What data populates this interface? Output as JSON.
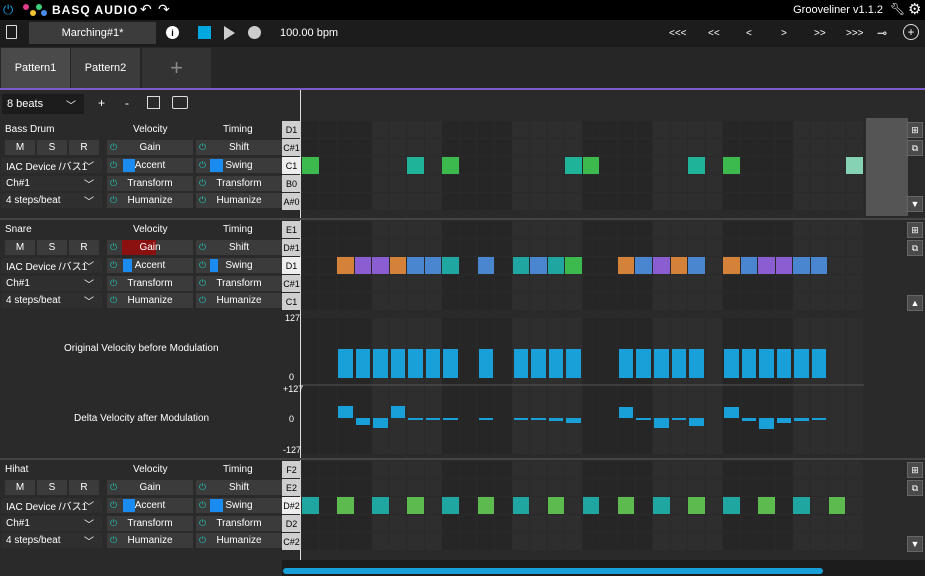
{
  "brand": "BASQ AUDIO",
  "app_title": "Grooveliner v1.1.2",
  "document_name": "Marching#1*",
  "bpm": "100.00 bpm",
  "transport": [
    "<<<",
    "<<",
    "<",
    ">",
    ">>",
    ">>>"
  ],
  "tabs": [
    "Pattern1",
    "Pattern2"
  ],
  "add_tab": "+",
  "beats": "8 beats",
  "plus": "+",
  "minus": "-",
  "col_velocity": "Velocity",
  "col_timing": "Timing",
  "msr": [
    "M",
    "S",
    "R"
  ],
  "gain": "Gain",
  "shift": "Shift",
  "accent": "Accent",
  "swing": "Swing",
  "transform": "Transform",
  "humanize": "Humanize",
  "device": "IAC Device /バス1",
  "channel": "Ch#1",
  "steps": "4 steps/beat",
  "tracks": [
    {
      "name": "Bass Drum",
      "pitches": [
        "D1",
        "C#1",
        "C1",
        "B0",
        "A#0"
      ]
    },
    {
      "name": "Snare",
      "pitches": [
        "E1",
        "D#1",
        "D1",
        "C#1",
        "C1"
      ]
    },
    {
      "name": "Hihat",
      "pitches": [
        "F2",
        "E2",
        "D#2",
        "D2",
        "C#2"
      ]
    }
  ],
  "vel_label": "Original Velocity before Modulation",
  "delta_label": "Delta Velocity after Modulation",
  "vel_max": "127",
  "vel_min": "0",
  "delta_max": "+127",
  "delta_zero": "0",
  "delta_min": "-127",
  "colors": {
    "purple_accent": "#7b5cc9",
    "cyan": "#00a8e0",
    "velocity_bar": "#1aa0d8"
  }
}
